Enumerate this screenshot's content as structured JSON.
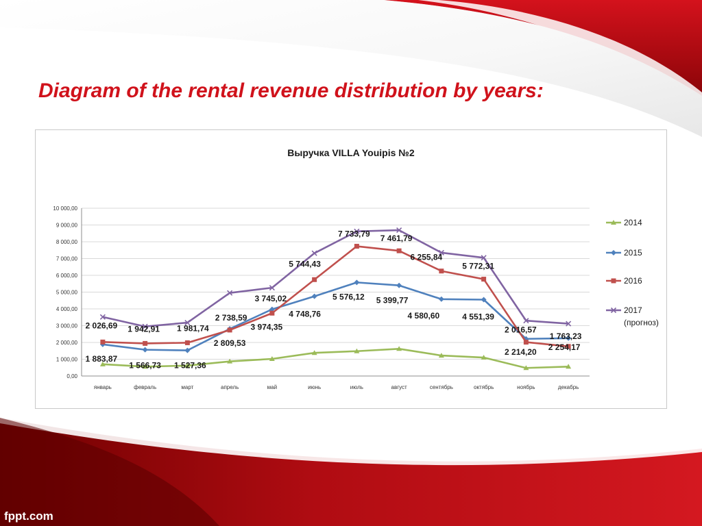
{
  "slide": {
    "title": "Diagram of the rental revenue distribution by years:",
    "watermark": "fppt.com"
  },
  "colors": {
    "red_dark": "#7a0000",
    "red": "#c8101a",
    "title": "#d0121b",
    "grid": "#d9d9d9",
    "label": "#1a1a1a"
  },
  "chart_data": {
    "type": "line",
    "title": "Выручка  VILLA Youipis №2",
    "xlabel": "",
    "ylabel": "",
    "ylim": [
      0,
      10000
    ],
    "yticks": [
      "0,00",
      "1 000,00",
      "2 000,00",
      "3 000,00",
      "4 000,00",
      "5 000,00",
      "6 000,00",
      "7 000,00",
      "8 000,00",
      "9 000,00",
      "10 000,00"
    ],
    "grid": true,
    "legend_position": "right",
    "categories": [
      "январь",
      "февраль",
      "март",
      "апрель",
      "май",
      "июнь",
      "июль",
      "август",
      "сентябрь",
      "октябрь",
      "ноябрь",
      "декабрь"
    ],
    "series": [
      {
        "name": "2014",
        "color": "#9bbb59",
        "marker": "triangle",
        "values": [
          700,
          560,
          620,
          870,
          1020,
          1380,
          1480,
          1620,
          1220,
          1100,
          480,
          560
        ]
      },
      {
        "name": "2015",
        "color": "#4f81bd",
        "marker": "diamond",
        "values": [
          1883.87,
          1566.73,
          1527.36,
          2809.53,
          3974.35,
          4748.76,
          5576.12,
          5399.77,
          4580.6,
          4551.39,
          2214.2,
          2254.17
        ]
      },
      {
        "name": "2016",
        "color": "#c0504d",
        "marker": "square",
        "values": [
          2026.69,
          1942.91,
          1981.74,
          2738.59,
          3745.02,
          5744.43,
          7733.79,
          7461.79,
          6255.84,
          5772.31,
          2016.57,
          1763.23
        ]
      },
      {
        "name": "2017",
        "subname": "(прогноз)",
        "color": "#8064a2",
        "marker": "x",
        "values": [
          3520,
          2950,
          3180,
          4950,
          5260,
          7320,
          8620,
          8690,
          7350,
          7050,
          3300,
          3120
        ]
      }
    ],
    "data_labels": [
      {
        "text": "2 026,69",
        "category": "январь",
        "value": 2026.69
      },
      {
        "text": "1 942,91",
        "category": "февраль",
        "value": 1942.91
      },
      {
        "text": "1 981,74",
        "category": "март",
        "value": 1981.74
      },
      {
        "text": "2 738,59",
        "category": "апрель",
        "value": 2738.59
      },
      {
        "text": "3 745,02",
        "category": "май",
        "value": 3745.02
      },
      {
        "text": "5 744,43",
        "category": "июнь",
        "value": 5744.43
      },
      {
        "text": "7 733,79",
        "category": "июль",
        "value": 7733.79
      },
      {
        "text": "7 461,79",
        "category": "август",
        "value": 7461.79
      },
      {
        "text": "6 255,84",
        "category": "сентябрь",
        "value": 6255.84
      },
      {
        "text": "5 772,31",
        "category": "октябрь",
        "value": 5772.31
      },
      {
        "text": "2 016,57",
        "category": "ноябрь",
        "value": 2016.57
      },
      {
        "text": "1 763,23",
        "category": "декабрь",
        "value": 1763.23
      },
      {
        "text": "1 883,87",
        "category": "январь",
        "value": 1883.87
      },
      {
        "text": "1 566,73",
        "category": "февраль",
        "value": 1566.73
      },
      {
        "text": "1 527,36",
        "category": "март",
        "value": 1527.36
      },
      {
        "text": "2 809,53",
        "category": "апрель",
        "value": 2809.53
      },
      {
        "text": "3 974,35",
        "category": "май",
        "value": 3974.35
      },
      {
        "text": "4 748,76",
        "category": "июнь",
        "value": 4748.76
      },
      {
        "text": "5 576,12",
        "category": "июль",
        "value": 5576.12
      },
      {
        "text": "5 399,77",
        "category": "август",
        "value": 5399.77
      },
      {
        "text": "4 580,60",
        "category": "сентябрь",
        "value": 4580.6
      },
      {
        "text": "4 551,39",
        "category": "октябрь",
        "value": 4551.39
      },
      {
        "text": "2 214,20",
        "category": "ноябрь",
        "value": 2214.2
      },
      {
        "text": "2 254,17",
        "category": "декабрь",
        "value": 2254.17
      }
    ]
  }
}
